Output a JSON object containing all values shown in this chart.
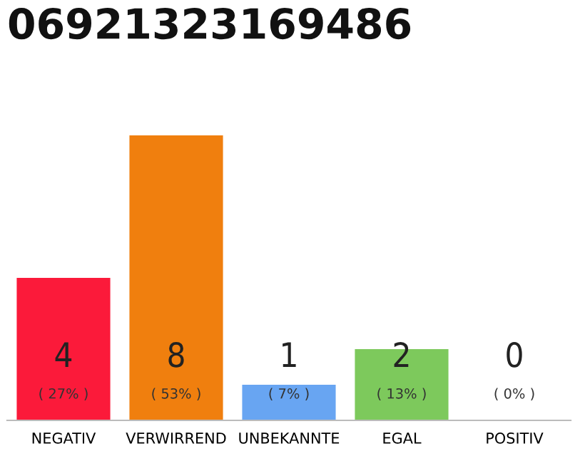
{
  "chart_data": {
    "type": "bar",
    "title": "06921323169486",
    "categories": [
      "NEGATIV",
      "VERWIRREND",
      "UNBEKANNTE",
      "EGAL",
      "POSITIV"
    ],
    "values": [
      4,
      8,
      1,
      2,
      0
    ],
    "colors": [
      "#fb1a3a",
      "#f07f0e",
      "#68a5f2",
      "#7dc95c",
      "#cccccc"
    ],
    "value_labels": [
      "4\n( 27% )",
      "8\n( 53% )",
      "1\n( 7% )",
      "2\n( 13% )",
      "0\n( 0% )"
    ],
    "ylim": [
      0,
      8
    ],
    "grid": false,
    "legend": false
  }
}
